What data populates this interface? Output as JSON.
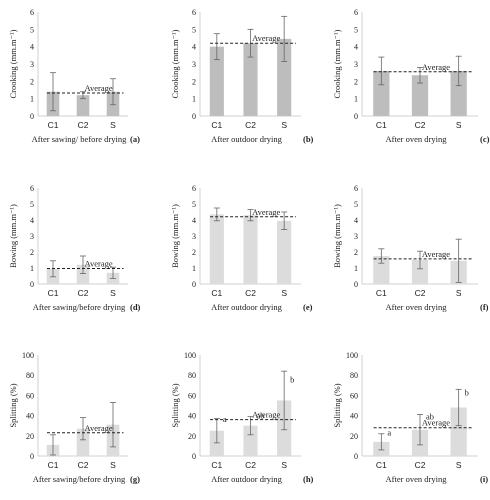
{
  "colors": {
    "dark_bar": "#bdbdbd",
    "light_bar": "#dcdcdc",
    "axis": "#d0d0d0",
    "err": "#666666"
  },
  "chart_data": [
    {
      "type": "bar",
      "panel_label": "(a)",
      "xlabel": "After sawing/ before drying",
      "ylabel": "Crooking  (mm.m⁻¹)",
      "ylim": [
        0,
        6
      ],
      "ytick_labels": [
        "0",
        "1",
        "2",
        "3",
        "4",
        "5",
        "6"
      ],
      "categories": [
        "C1",
        "C2",
        "S"
      ],
      "values": [
        1.4,
        1.2,
        1.4
      ],
      "errors": [
        1.1,
        0.2,
        0.75
      ],
      "average": 1.33,
      "average_label": "Average",
      "letters": [],
      "bar_color": "dark"
    },
    {
      "type": "bar",
      "panel_label": "(b)",
      "xlabel": "After outdoor drying",
      "ylabel": "Crooking  (mm.m⁻¹)",
      "ylim": [
        0,
        6
      ],
      "ytick_labels": [
        "0",
        "1",
        "2",
        "3",
        "4",
        "5",
        "6"
      ],
      "categories": [
        "C1",
        "C2",
        "S"
      ],
      "values": [
        4.0,
        4.2,
        4.45
      ],
      "errors": [
        0.75,
        0.8,
        1.3
      ],
      "average": 4.2,
      "average_label": "Average",
      "letters": [],
      "bar_color": "dark"
    },
    {
      "type": "bar",
      "panel_label": "(c)",
      "xlabel": "After oven drying",
      "ylabel": "Crooking  (mm.m⁻¹)",
      "ylim": [
        0,
        6
      ],
      "ytick_labels": [
        "0",
        "1",
        "2",
        "3",
        "4",
        "5",
        "6"
      ],
      "categories": [
        "C1",
        "C2",
        "S"
      ],
      "values": [
        2.6,
        2.35,
        2.6
      ],
      "errors": [
        0.8,
        0.45,
        0.85
      ],
      "average": 2.55,
      "average_label": "Average",
      "letters": [],
      "bar_color": "dark"
    },
    {
      "type": "bar",
      "panel_label": "(d)",
      "xlabel": "After sawing/before drying",
      "ylabel": "Bowing (mm.m⁻¹)",
      "ylim": [
        0,
        6
      ],
      "ytick_labels": [
        "0",
        "1",
        "2",
        "3",
        "4",
        "5",
        "6"
      ],
      "categories": [
        "C1",
        "C2",
        "S"
      ],
      "values": [
        0.95,
        1.2,
        0.7
      ],
      "errors": [
        0.5,
        0.55,
        0.35
      ],
      "average": 0.97,
      "average_label": "Average",
      "letters": [],
      "bar_color": "light"
    },
    {
      "type": "bar",
      "panel_label": "(e)",
      "xlabel": "After outdoor drying",
      "ylabel": "Bowing (mm.m⁻¹)",
      "ylim": [
        0,
        6
      ],
      "ytick_labels": [
        "0",
        "1",
        "2",
        "3",
        "4",
        "5",
        "6"
      ],
      "categories": [
        "C1",
        "C2",
        "S"
      ],
      "values": [
        4.35,
        4.3,
        3.95
      ],
      "errors": [
        0.4,
        0.35,
        0.55
      ],
      "average": 4.2,
      "average_label": "Average",
      "letters": [],
      "bar_color": "light"
    },
    {
      "type": "bar",
      "panel_label": "(f)",
      "xlabel": "After oven drying",
      "ylabel": "Bowing (mm.m⁻¹)",
      "ylim": [
        0,
        6
      ],
      "ytick_labels": [
        "0",
        "1",
        "2",
        "3",
        "4",
        "5",
        "6"
      ],
      "categories": [
        "C1",
        "C2",
        "S"
      ],
      "values": [
        1.75,
        1.5,
        1.45
      ],
      "errors": [
        0.45,
        0.55,
        1.35
      ],
      "average": 1.57,
      "average_label": "Average",
      "letters": [],
      "bar_color": "light"
    },
    {
      "type": "bar",
      "panel_label": "(g)",
      "xlabel": "After sawing/before drying",
      "ylabel": "Splitting (%)",
      "ylim": [
        0,
        100
      ],
      "ytick_labels": [
        "0",
        "20",
        "40",
        "60",
        "80",
        "100"
      ],
      "categories": [
        "C1",
        "C2",
        "S"
      ],
      "values": [
        11,
        27,
        31
      ],
      "errors": [
        10,
        11,
        22
      ],
      "average": 23,
      "average_label": "Average",
      "letters": [],
      "bar_color": "light"
    },
    {
      "type": "bar",
      "panel_label": "(h)",
      "xlabel": "After outdoor drying",
      "ylabel": "Splitting (%)",
      "ylim": [
        0,
        100
      ],
      "ytick_labels": [
        "0",
        "20",
        "40",
        "60",
        "80",
        "100"
      ],
      "categories": [
        "C1",
        "C2",
        "S"
      ],
      "values": [
        25,
        30,
        55
      ],
      "errors": [
        12,
        9,
        29
      ],
      "average": 36,
      "average_label": "Average",
      "letters": [
        "a",
        "ab",
        "b"
      ],
      "bar_color": "light"
    },
    {
      "type": "bar",
      "panel_label": "(i)",
      "xlabel": "After oven drying",
      "ylabel": "Splitting (%)",
      "ylim": [
        0,
        100
      ],
      "ytick_labels": [
        "0",
        "20",
        "40",
        "60",
        "80",
        "100"
      ],
      "categories": [
        "C1",
        "C2",
        "S"
      ],
      "values": [
        14,
        26,
        48
      ],
      "errors": [
        8,
        15,
        18
      ],
      "average": 28,
      "average_label": "Average",
      "letters": [
        "a",
        "ab",
        "b"
      ],
      "bar_color": "light"
    }
  ]
}
